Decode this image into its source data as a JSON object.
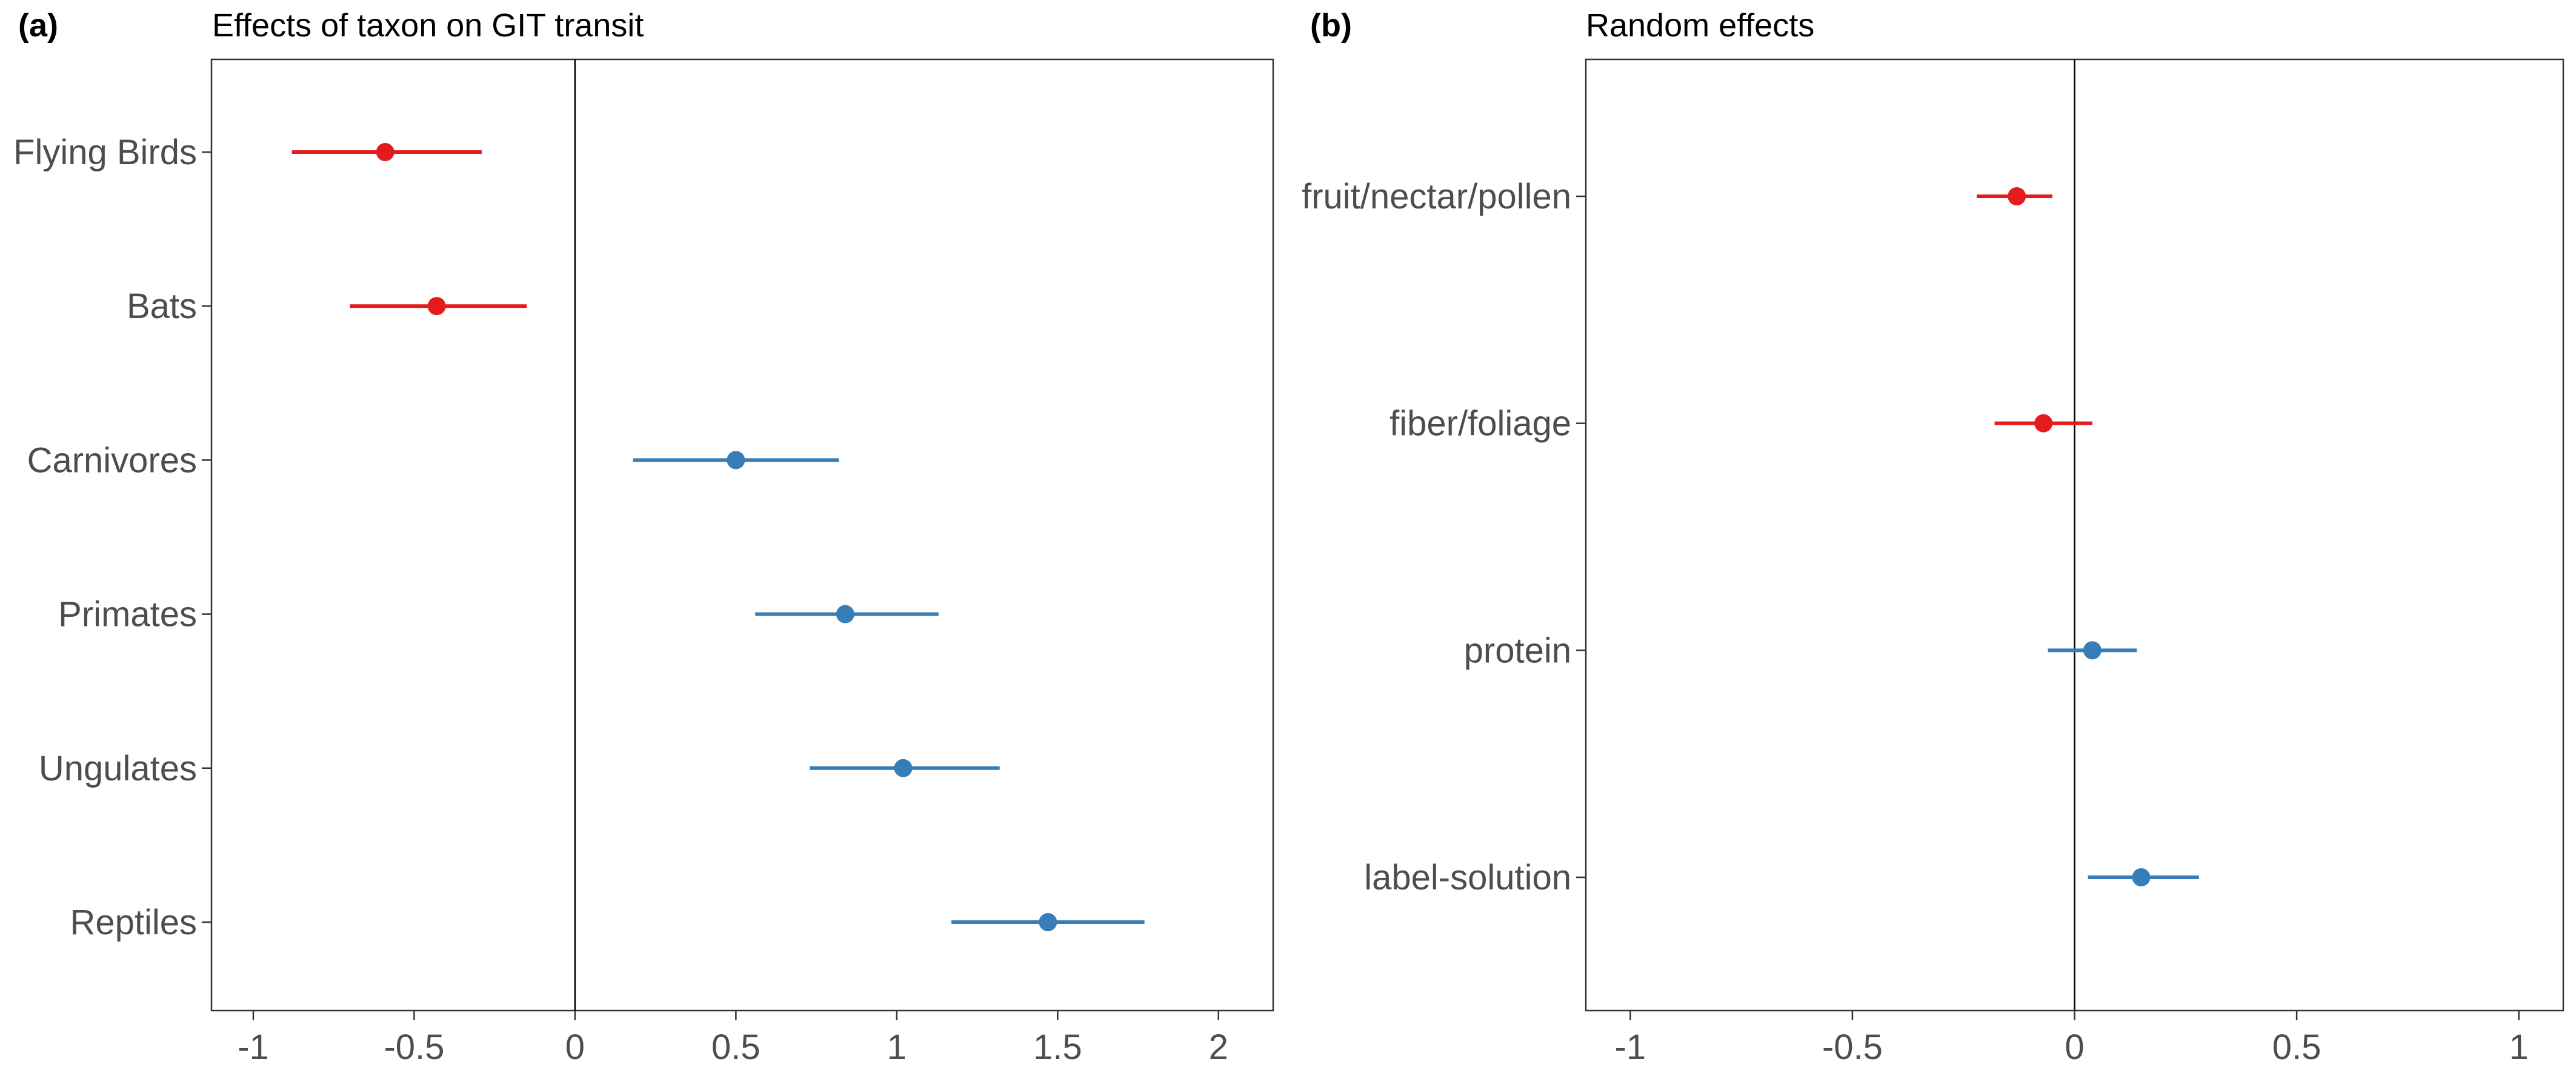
{
  "chart_data": [
    {
      "type": "forest",
      "panel_label": "(a)",
      "title": "Effects of taxon on GIT transit",
      "xlabel": "",
      "ylabel": "",
      "xlim": [
        -1.13,
        2.17
      ],
      "xticks": [
        "-1",
        "-0.5",
        "0",
        "0.5",
        "1",
        "1.5",
        "2"
      ],
      "xtick_values": [
        -1,
        -0.5,
        0,
        0.5,
        1,
        1.5,
        2
      ],
      "zero_line": 0,
      "grid": false,
      "legend": "none",
      "categories": [
        "Flying Birds",
        "Bats",
        "Carnivores",
        "Primates",
        "Ungulates",
        "Reptiles"
      ],
      "estimates": [
        -0.59,
        -0.43,
        0.5,
        0.84,
        1.02,
        1.47
      ],
      "lower": [
        -0.88,
        -0.7,
        0.18,
        0.56,
        0.73,
        1.17
      ],
      "upper": [
        -0.29,
        -0.15,
        0.82,
        1.13,
        1.32,
        1.77
      ],
      "colors": [
        "#e41a1c",
        "#e41a1c",
        "#377eb8",
        "#377eb8",
        "#377eb8",
        "#377eb8"
      ]
    },
    {
      "type": "forest",
      "panel_label": "(b)",
      "title": "Random effects",
      "xlabel": "",
      "ylabel": "",
      "xlim": [
        -1.1,
        1.1
      ],
      "xticks": [
        "-1",
        "-0.5",
        "0",
        "0.5",
        "1"
      ],
      "xtick_values": [
        -1,
        -0.5,
        0,
        0.5,
        1
      ],
      "zero_line": 0,
      "grid": false,
      "legend": "none",
      "categories": [
        "fruit/nectar/pollen",
        "fiber/foliage",
        "protein",
        "label-solution"
      ],
      "estimates": [
        -0.13,
        -0.07,
        0.04,
        0.15
      ],
      "lower": [
        -0.22,
        -0.18,
        -0.06,
        0.03
      ],
      "upper": [
        -0.05,
        0.04,
        0.14,
        0.28
      ],
      "colors": [
        "#e41a1c",
        "#e41a1c",
        "#377eb8",
        "#377eb8"
      ]
    }
  ]
}
